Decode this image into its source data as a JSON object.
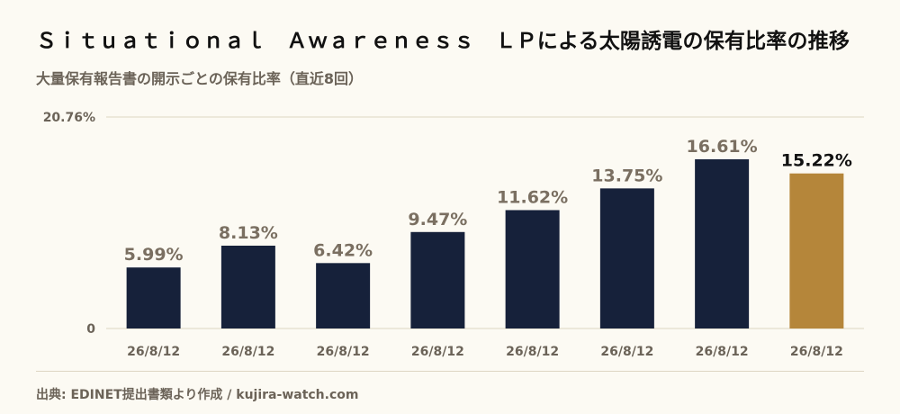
{
  "title": "Ｓｉｔｕａｔｉｏｎａｌ　Ａｗａｒｅｎｅｓｓ　ＬＰによる太陽誘電の保有比率の推移",
  "subtitle": "大量保有報告書の開示ごとの保有比率（直近8回）",
  "source": "出典: EDINET提出書類より作成 / kujira-watch.com",
  "colors": {
    "bar": "#16213a",
    "highlight": "#b5863a",
    "label": "#7a6f61",
    "highlight_label": "#111111",
    "axis_text": "#6b6358",
    "grid": "#ddd5c2"
  },
  "chart_data": {
    "type": "bar",
    "categories": [
      "26/8/12",
      "26/8/12",
      "26/8/12",
      "26/8/12",
      "26/8/12",
      "26/8/12",
      "26/8/12",
      "26/8/12"
    ],
    "values": [
      5.99,
      8.13,
      6.42,
      9.47,
      11.62,
      13.75,
      16.61,
      15.22
    ],
    "value_labels": [
      "5.99%",
      "8.13%",
      "6.42%",
      "9.47%",
      "11.62%",
      "13.75%",
      "16.61%",
      "15.22%"
    ],
    "highlight_index": 7,
    "ylim": [
      0,
      20.76
    ],
    "y_ticks": [
      0,
      20.76
    ],
    "y_tick_labels": [
      "0",
      "20.76%"
    ],
    "grid": true
  }
}
